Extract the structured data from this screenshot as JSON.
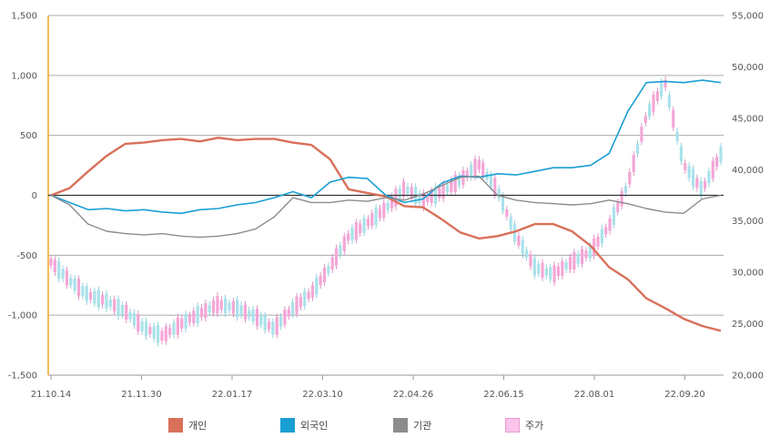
{
  "chart_data": {
    "type": "line",
    "left_axis": {
      "min": -1500,
      "max": 1500,
      "ticks": [
        -1500,
        -1000,
        -500,
        0,
        500,
        1000,
        1500
      ],
      "tick_labels": [
        "-1,500",
        "-1,000",
        "-500",
        "0",
        "500",
        "1,000",
        "1,500"
      ]
    },
    "right_axis": {
      "min": 20000,
      "max": 55000,
      "ticks": [
        20000,
        25000,
        30000,
        35000,
        40000,
        45000,
        50000,
        55000
      ],
      "tick_labels": [
        "20,000",
        "25,000",
        "30,000",
        "35,000",
        "40,000",
        "45,000",
        "50,000",
        "55,000"
      ]
    },
    "x_tick_labels": [
      "21.10.14",
      "21.11.30",
      "22.01.17",
      "22.03.10",
      "22.04.26",
      "22.06.15",
      "22.08.01",
      "22.09.20"
    ],
    "grid": true,
    "legend_position": "bottom",
    "colors": {
      "individual": "#d9705a",
      "foreign": "#1a9fd4",
      "institution": "#8c8c8c",
      "price_up": "#f4a6d7",
      "price_down": "#a9e2ea",
      "zero_line": "#333333",
      "left_axis": "#f5a623",
      "grid": "#aaaaaa"
    },
    "series": [
      {
        "name": "개인",
        "axis": "left",
        "values": [
          0,
          60,
          200,
          330,
          430,
          440,
          460,
          470,
          450,
          480,
          460,
          470,
          470,
          440,
          420,
          300,
          50,
          20,
          -10,
          -90,
          -100,
          -200,
          -310,
          -360,
          -340,
          -300,
          -240,
          -240,
          -300,
          -420,
          -600,
          -700,
          -860,
          -940,
          -1030,
          -1090,
          -1130
        ]
      },
      {
        "name": "외국인",
        "axis": "left",
        "values": [
          0,
          -60,
          -120,
          -110,
          -130,
          -120,
          -140,
          -150,
          -120,
          -110,
          -80,
          -60,
          -20,
          30,
          -20,
          110,
          150,
          140,
          0,
          -60,
          -30,
          100,
          160,
          150,
          180,
          170,
          200,
          230,
          230,
          250,
          350,
          700,
          940,
          950,
          940,
          960,
          940
        ]
      },
      {
        "name": "기관",
        "axis": "left",
        "values": [
          0,
          -80,
          -240,
          -300,
          -320,
          -330,
          -320,
          -340,
          -350,
          -340,
          -320,
          -280,
          -180,
          -20,
          -60,
          -60,
          -40,
          -50,
          -20,
          -40,
          10,
          80,
          150,
          160,
          0,
          -40,
          -60,
          -70,
          -80,
          -70,
          -40,
          -70,
          -110,
          -140,
          -150,
          -30,
          0
        ]
      },
      {
        "name": "주가",
        "axis": "right",
        "type": "candlestick",
        "values": [
          31000,
          29200,
          27800,
          27200,
          26200,
          24600,
          23800,
          25000,
          26000,
          26900,
          26500,
          25700,
          24500,
          26500,
          28000,
          30500,
          33500,
          34800,
          36200,
          38200,
          37000,
          37800,
          39000,
          40500,
          38000,
          33500,
          30500,
          29800,
          31000,
          32000,
          34500,
          38500,
          45200,
          48500,
          40500,
          38000,
          41500
        ]
      }
    ]
  },
  "legend": [
    {
      "label": "개인",
      "color": "#d9705a",
      "border": "#d9705a"
    },
    {
      "label": "외국인",
      "color": "#1a9fd4",
      "border": "#1a9fd4"
    },
    {
      "label": "기관",
      "color": "#8c8c8c",
      "border": "#8c8c8c"
    },
    {
      "label": "주가",
      "color": "#fbc4ea",
      "border": "#e79ad1"
    }
  ]
}
